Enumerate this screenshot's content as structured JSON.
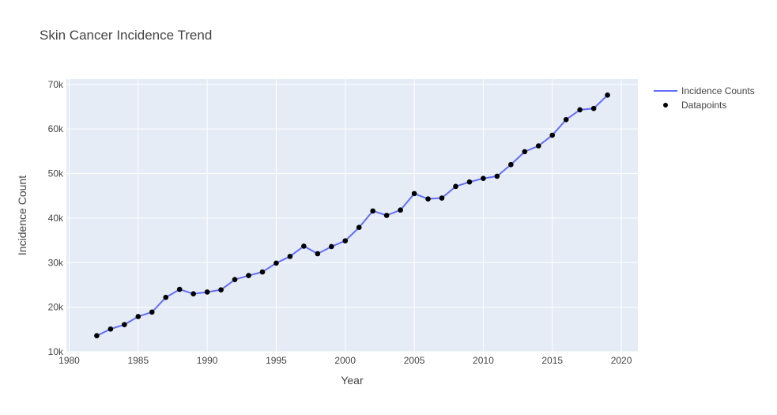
{
  "chart_data": {
    "type": "line",
    "title": "Skin Cancer Incidence Trend",
    "xlabel": "Year",
    "ylabel": "Incidence Count",
    "xlim": [
      1979.8,
      2021.2
    ],
    "ylim": [
      10000,
      71200
    ],
    "x_ticks": [
      1980,
      1985,
      1990,
      1995,
      2000,
      2005,
      2010,
      2015,
      2020
    ],
    "x_tick_labels": [
      "1980",
      "1985",
      "1990",
      "1995",
      "2000",
      "2005",
      "2010",
      "2015",
      "2020"
    ],
    "y_ticks": [
      10000,
      20000,
      30000,
      40000,
      50000,
      60000,
      70000
    ],
    "y_tick_labels": [
      "10k",
      "20k",
      "30k",
      "40k",
      "50k",
      "60k",
      "70k"
    ],
    "grid": true,
    "legend_position": "top-right",
    "x": [
      1982,
      1983,
      1984,
      1985,
      1986,
      1987,
      1988,
      1989,
      1990,
      1991,
      1992,
      1993,
      1994,
      1995,
      1996,
      1997,
      1998,
      1999,
      2000,
      2001,
      2002,
      2003,
      2004,
      2005,
      2006,
      2007,
      2008,
      2009,
      2010,
      2011,
      2012,
      2013,
      2014,
      2015,
      2016,
      2017,
      2018,
      2019
    ],
    "series": [
      {
        "name": "Incidence Counts",
        "mode": "line",
        "color": "#636efa",
        "values": [
          13600,
          15100,
          16100,
          17900,
          18900,
          22200,
          24000,
          23000,
          23400,
          23900,
          26200,
          27100,
          27900,
          29900,
          31400,
          33700,
          32000,
          33600,
          34900,
          37900,
          41600,
          40600,
          41800,
          45500,
          44300,
          44500,
          47100,
          48100,
          48900,
          49400,
          52000,
          54900,
          56200,
          58600,
          62100,
          64300,
          64600,
          67600
        ]
      },
      {
        "name": "Datapoints",
        "mode": "markers",
        "color": "#000000",
        "values": [
          13600,
          15100,
          16100,
          17900,
          18900,
          22200,
          24000,
          23000,
          23400,
          23900,
          26200,
          27100,
          27900,
          29900,
          31400,
          33700,
          32000,
          33600,
          34900,
          37900,
          41600,
          40600,
          41800,
          45500,
          44300,
          44500,
          47100,
          48100,
          48900,
          49400,
          52000,
          54900,
          56200,
          58600,
          62100,
          64300,
          64600,
          67600
        ]
      }
    ],
    "colors": {
      "plot_background": "#e5ecf6",
      "grid": "#ffffff"
    }
  }
}
